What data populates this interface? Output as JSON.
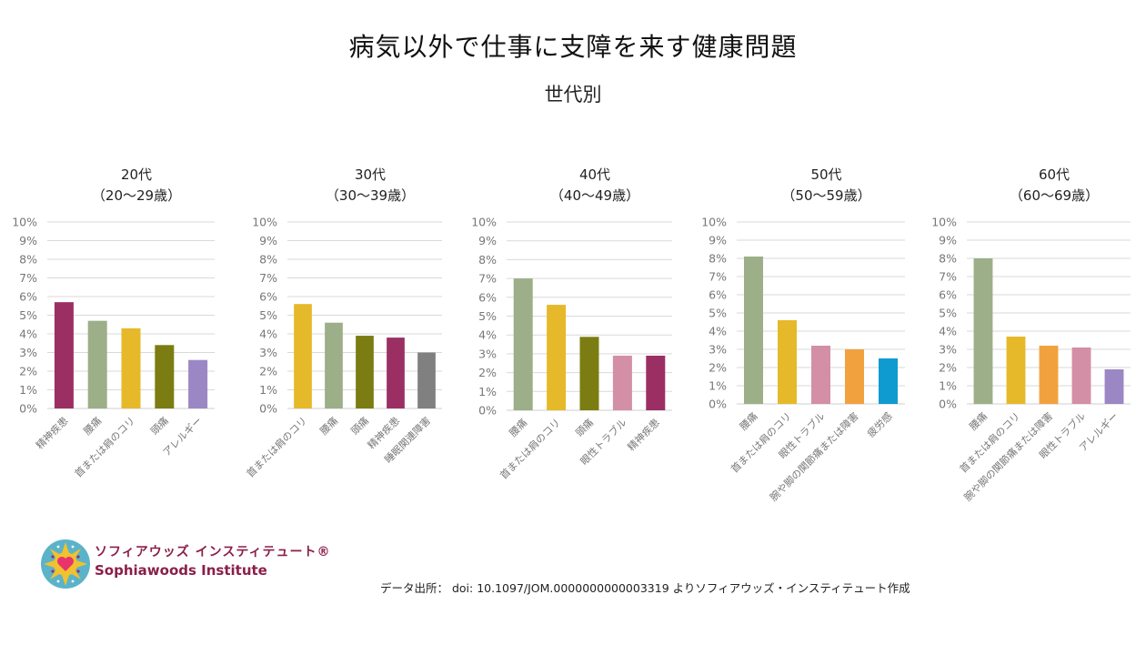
{
  "header": {
    "title": "病気以外で仕事に支障を来す健康問題",
    "subtitle": "世代別"
  },
  "footer": {
    "logo_jp": "ソフィアウッズ インスティテュート®",
    "logo_en": "Sophiawoods Institute",
    "source": "データ出所： doi: 10.1097/JOM.0000000000003319 よりソフィアウッズ・インスティテュート作成"
  },
  "colors": {
    "精神疾患": "#9b2f63",
    "腰痛": "#9caf88",
    "首または肩のコリ": "#e6b92a",
    "頭痛": "#7b7d12",
    "アレルギー": "#9b87c4",
    "睡眠関連障害": "#808080",
    "眼性トラブル": "#d38fa6",
    "腕や脚の関節痛または障害": "#f2a13f",
    "疲労感": "#0f9bcf"
  },
  "chart_data": [
    {
      "type": "bar",
      "title": "20代",
      "subtitle": "（20～29歳）",
      "categories": [
        "精神疾患",
        "腰痛",
        "首または肩のコリ",
        "頭痛",
        "アレルギー"
      ],
      "values": [
        5.7,
        4.7,
        4.3,
        3.4,
        2.6
      ],
      "ylim": [
        0,
        10
      ],
      "yticks": [
        "0%",
        "1%",
        "2%",
        "3%",
        "4%",
        "5%",
        "6%",
        "7%",
        "8%",
        "9%",
        "10%"
      ],
      "unit": "%",
      "grid": true
    },
    {
      "type": "bar",
      "title": "30代",
      "subtitle": "（30～39歳）",
      "categories": [
        "首または肩のコリ",
        "腰痛",
        "頭痛",
        "精神疾患",
        "睡眠関連障害"
      ],
      "values": [
        5.6,
        4.6,
        3.9,
        3.8,
        3.0
      ],
      "ylim": [
        0,
        10
      ],
      "yticks": [
        "0%",
        "1%",
        "2%",
        "3%",
        "4%",
        "5%",
        "6%",
        "7%",
        "8%",
        "9%",
        "10%"
      ],
      "unit": "%",
      "grid": true
    },
    {
      "type": "bar",
      "title": "40代",
      "subtitle": "（40～49歳）",
      "categories": [
        "腰痛",
        "首または肩のコリ",
        "頭痛",
        "眼性トラブル",
        "精神疾患"
      ],
      "values": [
        7.0,
        5.6,
        3.9,
        2.9,
        2.9
      ],
      "ylim": [
        0,
        10
      ],
      "yticks": [
        "0%",
        "1%",
        "2%",
        "3%",
        "4%",
        "5%",
        "6%",
        "7%",
        "8%",
        "9%",
        "10%"
      ],
      "unit": "%",
      "grid": true
    },
    {
      "type": "bar",
      "title": "50代",
      "subtitle": "（50～59歳）",
      "categories": [
        "腰痛",
        "首または肩のコリ",
        "眼性トラブル",
        "腕や脚の関節痛または障害",
        "疲労感"
      ],
      "values": [
        8.1,
        4.6,
        3.2,
        3.0,
        2.5
      ],
      "ylim": [
        0,
        10
      ],
      "yticks": [
        "0%",
        "1%",
        "2%",
        "3%",
        "4%",
        "5%",
        "6%",
        "7%",
        "8%",
        "9%",
        "10%"
      ],
      "unit": "%",
      "grid": true
    },
    {
      "type": "bar",
      "title": "60代",
      "subtitle": "（60～69歳）",
      "categories": [
        "腰痛",
        "首または肩のコリ",
        "腕や脚の関節痛または障害",
        "眼性トラブル",
        "アレルギー"
      ],
      "values": [
        8.0,
        3.7,
        3.2,
        3.1,
        1.9
      ],
      "ylim": [
        0,
        10
      ],
      "yticks": [
        "0%",
        "1%",
        "2%",
        "3%",
        "4%",
        "5%",
        "6%",
        "7%",
        "8%",
        "9%",
        "10%"
      ],
      "unit": "%",
      "grid": true
    }
  ]
}
